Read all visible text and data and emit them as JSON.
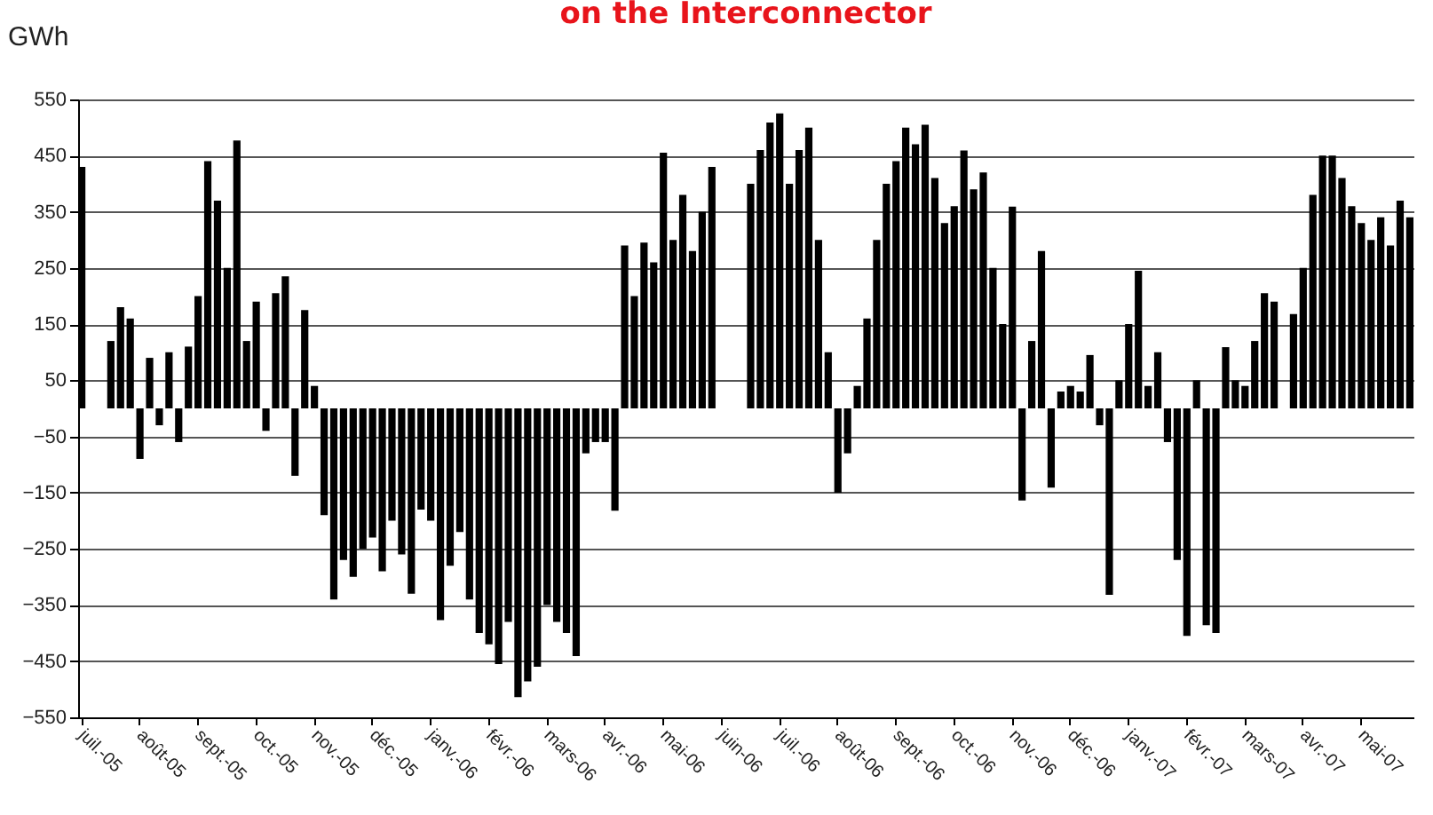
{
  "chart_data": {
    "type": "bar",
    "title": "on the Interconnector",
    "ylabel": "GWh",
    "categories": [
      "juil.-05",
      null,
      null,
      null,
      null,
      null,
      "août-05",
      null,
      null,
      null,
      null,
      null,
      "sept.-05",
      null,
      null,
      null,
      null,
      null,
      "oct.-05",
      null,
      null,
      null,
      null,
      null,
      "nov.-05",
      null,
      null,
      null,
      null,
      null,
      "déc.-05",
      null,
      null,
      null,
      null,
      null,
      "janv.-06",
      null,
      null,
      null,
      null,
      null,
      "févr.-06",
      null,
      null,
      null,
      null,
      null,
      "mars-06",
      null,
      null,
      null,
      null,
      null,
      "avr.-06",
      null,
      null,
      null,
      null,
      null,
      "mai-06",
      null,
      null,
      null,
      null,
      null,
      "juin-06",
      null,
      null,
      null,
      null,
      null,
      "juil.-06",
      null,
      null,
      null,
      null,
      null,
      "août-06",
      null,
      null,
      null,
      null,
      null,
      "sept.-06",
      null,
      null,
      null,
      null,
      null,
      "oct.-06",
      null,
      null,
      null,
      null,
      null,
      "nov.-06",
      null,
      null,
      null,
      null,
      null,
      "déc.-06",
      null,
      null,
      null,
      null,
      null,
      "janv.-07",
      null,
      null,
      null,
      null,
      null,
      "févr.-07",
      null,
      null,
      null,
      null,
      null,
      "mars-07",
      null,
      null,
      null,
      null,
      null,
      "avr.-07",
      null,
      null,
      null,
      null,
      null,
      "mai-07",
      null,
      null,
      null,
      null,
      null
    ],
    "values": [
      430,
      0,
      0,
      120,
      180,
      160,
      -90,
      90,
      -30,
      100,
      -60,
      110,
      200,
      440,
      370,
      250,
      477,
      120,
      190,
      -40,
      205,
      235,
      -120,
      175,
      40,
      -190,
      -340,
      -270,
      -300,
      -250,
      -230,
      -290,
      -200,
      -260,
      -330,
      -180,
      -200,
      -377,
      -280,
      -220,
      -340,
      -400,
      -420,
      -455,
      -380,
      -514,
      -486,
      -460,
      -350,
      -380,
      -400,
      -441,
      -80,
      -60,
      -60,
      -182,
      290,
      200,
      295,
      260,
      455,
      300,
      380,
      280,
      350,
      430,
      0,
      0,
      0,
      400,
      460,
      509,
      525,
      400,
      460,
      500,
      300,
      100,
      -150,
      -80,
      40,
      160,
      300,
      400,
      440,
      500,
      470,
      505,
      410,
      330,
      360,
      459,
      390,
      420,
      250,
      150,
      359,
      -164,
      120,
      280,
      -141,
      30,
      40,
      30,
      95,
      -30,
      -332,
      50,
      150,
      245,
      40,
      100,
      -60,
      -270,
      -405,
      50,
      -386,
      -400,
      109,
      50,
      40,
      120,
      205,
      190,
      0,
      168,
      250,
      380,
      450,
      450,
      410,
      360,
      330,
      300,
      340,
      290,
      370,
      340
    ],
    "color": "#000000",
    "ylim": [
      -550,
      550
    ],
    "yticks": [
      -550,
      -450,
      -350,
      -250,
      -150,
      -50,
      50,
      150,
      250,
      350,
      450,
      550
    ],
    "grid": true
  }
}
